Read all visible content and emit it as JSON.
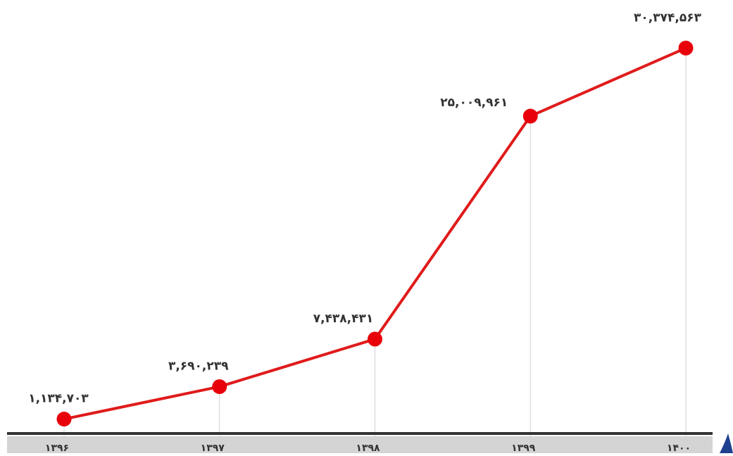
{
  "chart_data": {
    "type": "line",
    "categories": [
      "۱۳۹۶",
      "۱۳۹۷",
      "۱۳۹۸",
      "۱۳۹۹",
      "۱۴۰۰"
    ],
    "series": [
      {
        "values": [
          1134703,
          3690239,
          7438431,
          25009961,
          30374563
        ],
        "labels": [
          "۱,۱۳۴,۷۰۳",
          "۳,۶۹۰,۲۳۹",
          "۷,۴۳۸,۴۳۱",
          "۲۵,۰۰۹,۹۶۱",
          "۳۰,۳۷۴,۵۶۳"
        ]
      }
    ],
    "ylim": [
      0,
      31500000
    ],
    "grid": "vertical",
    "legend": "none"
  },
  "colors": {
    "line": "#e01b1b",
    "marker": "#e8000a",
    "axis": "#333333",
    "axis_band": "#d4d4d4",
    "gridline": "#d0d0d0",
    "accent": "#1f3f8f"
  }
}
